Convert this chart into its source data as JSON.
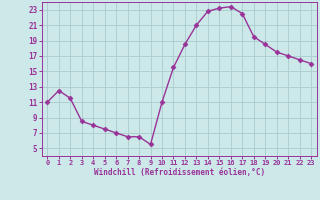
{
  "x": [
    0,
    1,
    2,
    3,
    4,
    5,
    6,
    7,
    8,
    9,
    10,
    11,
    12,
    13,
    14,
    15,
    16,
    17,
    18,
    19,
    20,
    21,
    22,
    23
  ],
  "y": [
    11,
    12.5,
    11.5,
    8.5,
    8,
    7.5,
    7,
    6.5,
    6.5,
    5.5,
    11,
    15.5,
    18.5,
    21,
    22.8,
    23.2,
    23.4,
    22.5,
    19.5,
    18.5,
    17.5,
    17,
    16.5,
    16
  ],
  "line_color": "#993399",
  "marker": "D",
  "markersize": 2.5,
  "linewidth": 1.0,
  "bg_color": "#cce8e8",
  "grid_color": "#aacccc",
  "xlabel": "Windchill (Refroidissement éolien,°C)",
  "xlabel_color": "#993399",
  "tick_color": "#993399",
  "label_color": "#993399",
  "ylim": [
    4,
    24
  ],
  "xlim": [
    -0.5,
    23.5
  ],
  "yticks": [
    5,
    7,
    9,
    11,
    13,
    15,
    17,
    19,
    21,
    23
  ],
  "xticks": [
    0,
    1,
    2,
    3,
    4,
    5,
    6,
    7,
    8,
    9,
    10,
    11,
    12,
    13,
    14,
    15,
    16,
    17,
    18,
    19,
    20,
    21,
    22,
    23
  ]
}
